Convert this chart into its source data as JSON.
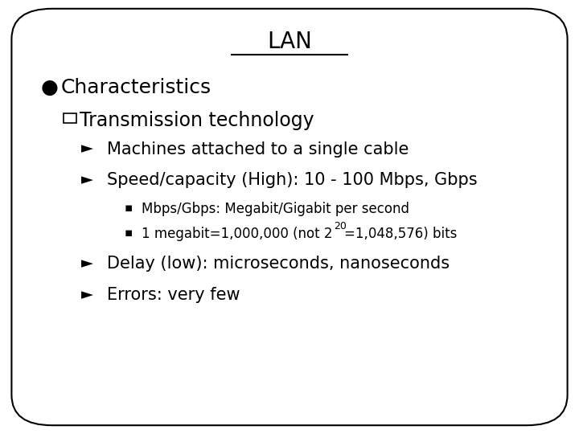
{
  "title": "LAN",
  "background_color": "#ffffff",
  "border_color": "#000000",
  "text_color": "#000000",
  "bullet1": "Characteristics",
  "sub_bullet1": "Transmission technology",
  "arrow1": "Machines attached to a single cable",
  "arrow2": "Speed/capacity (High): 10 - 100 Mbps, Gbps",
  "square1": "Mbps/Gbps: Megabit/Gigabit per second",
  "square2_part1": "1 megabit=1,000,000 (not 2",
  "square2_sup": "20",
  "square2_part2": "=1,048,576) bits",
  "arrow3": "Delay (low): microseconds, nanoseconds",
  "arrow4": "Errors: very few",
  "title_fontsize": 20,
  "char_fontsize": 18,
  "sub_fontsize": 17,
  "arrow_fontsize": 15,
  "small_fontsize": 12,
  "arrow_bullet_fontsize": 14
}
